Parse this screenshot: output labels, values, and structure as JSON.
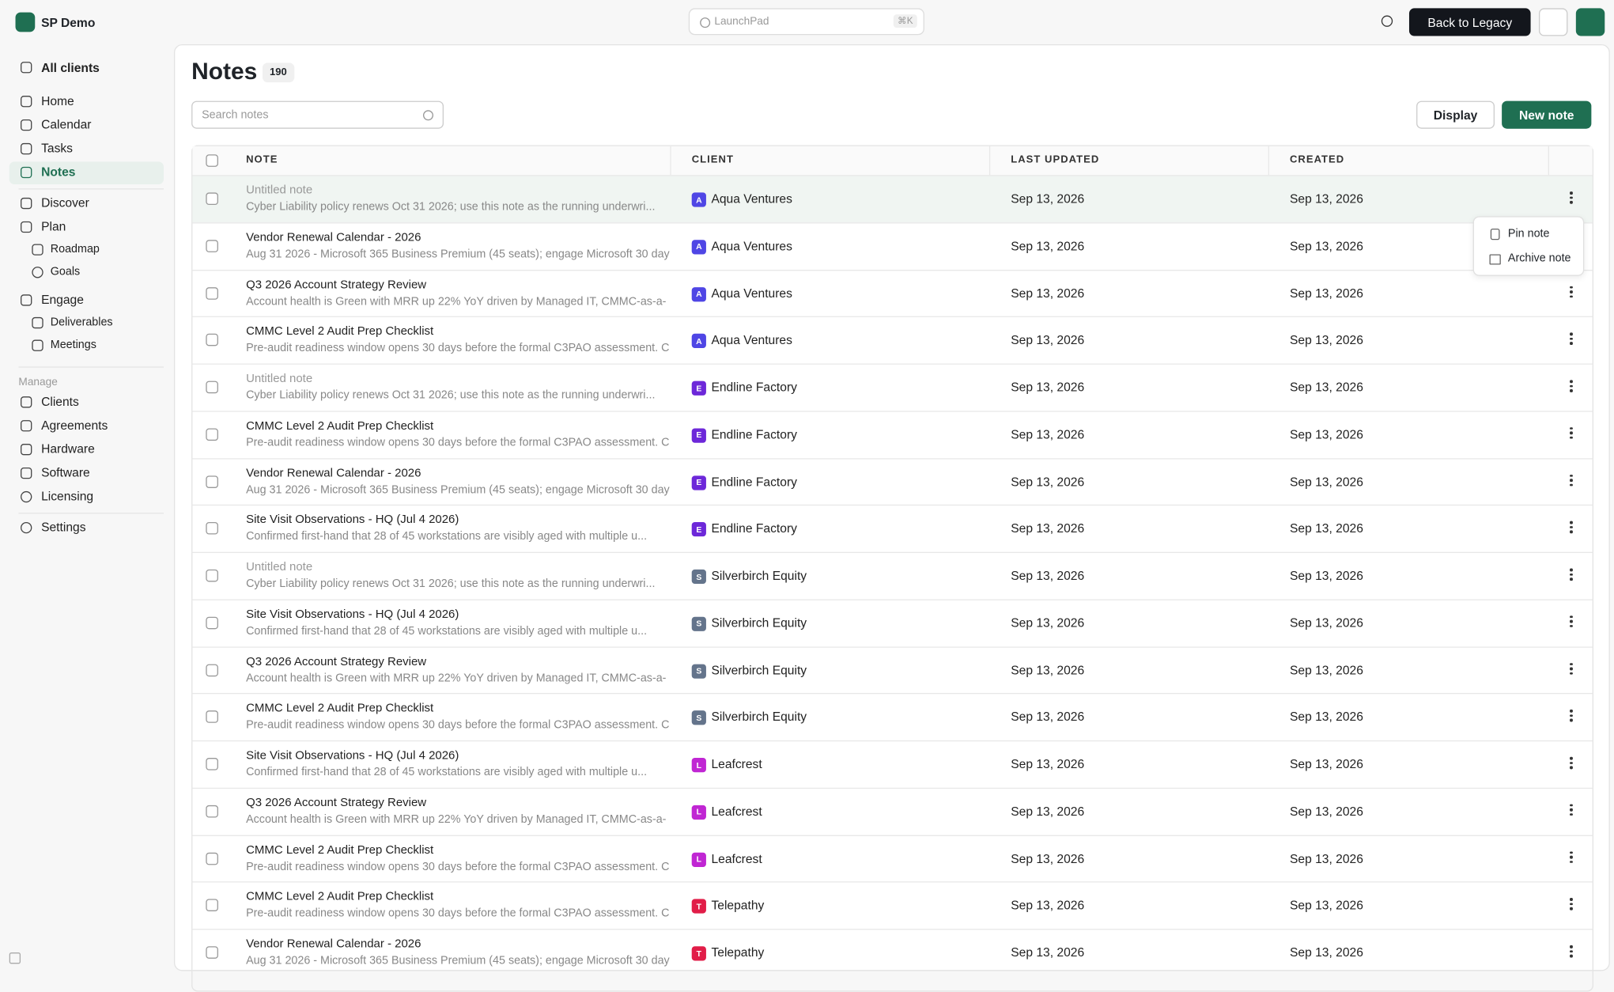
{
  "header": {
    "brand": "SP Demo",
    "search_placeholder": "LaunchPad",
    "shortcut": "⌘K",
    "legacy_button": "Back to Legacy"
  },
  "sidebar": {
    "client_selector": "All clients",
    "nav": [
      "Home",
      "Calendar",
      "Tasks",
      "Notes"
    ],
    "discover": "Discover",
    "plan": "Plan",
    "plan_items": [
      "Roadmap",
      "Goals"
    ],
    "engage": "Engage",
    "engage_items": [
      "Deliverables",
      "Meetings"
    ],
    "manage_heading": "Manage",
    "manage_items": [
      "Clients",
      "Agreements",
      "Hardware",
      "Software",
      "Licensing"
    ],
    "settings": "Settings"
  },
  "main": {
    "title": "Notes",
    "count": "190",
    "search_placeholder": "Search notes",
    "display_button": "Display",
    "new_button": "New note",
    "columns": [
      "NOTE",
      "CLIENT",
      "LAST UPDATED",
      "CREATED"
    ],
    "rows": [
      {
        "title": "Untitled note",
        "preview": "Cyber Liability policy renews Oct 31 2026; use this note as the running underwri...",
        "client": "Aqua Ventures",
        "initial": "A",
        "badge_color": "#4f46e5",
        "updated": "Sep 13, 2026",
        "created": "Sep 13, 2026"
      },
      {
        "title": "Vendor Renewal Calendar - 2026",
        "preview": "Aug 31 2026 - Microsoft 365 Business Premium (45 seats); engage Microsoft 30 day",
        "client": "Aqua Ventures",
        "initial": "A",
        "badge_color": "#4f46e5",
        "updated": "Sep 13, 2026",
        "created": "Sep 13, 2026"
      },
      {
        "title": "Q3 2026 Account Strategy Review",
        "preview": "Account health is Green with MRR up 22% YoY driven by Managed IT, CMMC-as-a-",
        "client": "Aqua Ventures",
        "initial": "A",
        "badge_color": "#4f46e5",
        "updated": "Sep 13, 2026",
        "created": "Sep 13, 2026"
      },
      {
        "title": "CMMC Level 2 Audit Prep Checklist",
        "preview": "Pre-audit readiness window opens 30 days before the formal C3PAO assessment. C",
        "client": "Aqua Ventures",
        "initial": "A",
        "badge_color": "#4f46e5",
        "updated": "Sep 13, 2026",
        "created": "Sep 13, 2026"
      },
      {
        "title": "Untitled note",
        "preview": "Cyber Liability policy renews Oct 31 2026; use this note as the running underwri...",
        "client": "Endline Factory",
        "initial": "E",
        "badge_color": "#6d28d9",
        "updated": "Sep 13, 2026",
        "created": "Sep 13, 2026"
      },
      {
        "title": "CMMC Level 2 Audit Prep Checklist",
        "preview": "Pre-audit readiness window opens 30 days before the formal C3PAO assessment. C",
        "client": "Endline Factory",
        "initial": "E",
        "badge_color": "#6d28d9",
        "updated": "Sep 13, 2026",
        "created": "Sep 13, 2026"
      },
      {
        "title": "Vendor Renewal Calendar - 2026",
        "preview": "Aug 31 2026 - Microsoft 365 Business Premium (45 seats); engage Microsoft 30 day",
        "client": "Endline Factory",
        "initial": "E",
        "badge_color": "#6d28d9",
        "updated": "Sep 13, 2026",
        "created": "Sep 13, 2026"
      },
      {
        "title": "Site Visit Observations - HQ (Jul 4 2026)",
        "preview": "Confirmed first-hand that 28 of 45 workstations are visibly aged with multiple u...",
        "client": "Endline Factory",
        "initial": "E",
        "badge_color": "#6d28d9",
        "updated": "Sep 13, 2026",
        "created": "Sep 13, 2026"
      },
      {
        "title": "Untitled note",
        "preview": "Cyber Liability policy renews Oct 31 2026; use this note as the running underwri...",
        "client": "Silverbirch Equity",
        "initial": "S",
        "badge_color": "#64748b",
        "updated": "Sep 13, 2026",
        "created": "Sep 13, 2026"
      },
      {
        "title": "Site Visit Observations - HQ (Jul 4 2026)",
        "preview": "Confirmed first-hand that 28 of 45 workstations are visibly aged with multiple u...",
        "client": "Silverbirch Equity",
        "initial": "S",
        "badge_color": "#64748b",
        "updated": "Sep 13, 2026",
        "created": "Sep 13, 2026"
      },
      {
        "title": "Q3 2026 Account Strategy Review",
        "preview": "Account health is Green with MRR up 22% YoY driven by Managed IT, CMMC-as-a-",
        "client": "Silverbirch Equity",
        "initial": "S",
        "badge_color": "#64748b",
        "updated": "Sep 13, 2026",
        "created": "Sep 13, 2026"
      },
      {
        "title": "CMMC Level 2 Audit Prep Checklist",
        "preview": "Pre-audit readiness window opens 30 days before the formal C3PAO assessment. C",
        "client": "Silverbirch Equity",
        "initial": "S",
        "badge_color": "#64748b",
        "updated": "Sep 13, 2026",
        "created": "Sep 13, 2026"
      },
      {
        "title": "Site Visit Observations - HQ (Jul 4 2026)",
        "preview": "Confirmed first-hand that 28 of 45 workstations are visibly aged with multiple u...",
        "client": "Leafcrest",
        "initial": "L",
        "badge_color": "#c026d3",
        "updated": "Sep 13, 2026",
        "created": "Sep 13, 2026"
      },
      {
        "title": "Q3 2026 Account Strategy Review",
        "preview": "Account health is Green with MRR up 22% YoY driven by Managed IT, CMMC-as-a-",
        "client": "Leafcrest",
        "initial": "L",
        "badge_color": "#c026d3",
        "updated": "Sep 13, 2026",
        "created": "Sep 13, 2026"
      },
      {
        "title": "CMMC Level 2 Audit Prep Checklist",
        "preview": "Pre-audit readiness window opens 30 days before the formal C3PAO assessment. C",
        "client": "Leafcrest",
        "initial": "L",
        "badge_color": "#c026d3",
        "updated": "Sep 13, 2026",
        "created": "Sep 13, 2026"
      },
      {
        "title": "CMMC Level 2 Audit Prep Checklist",
        "preview": "Pre-audit readiness window opens 30 days before the formal C3PAO assessment. C",
        "client": "Telepathy",
        "initial": "T",
        "badge_color": "#e11d48",
        "updated": "Sep 13, 2026",
        "created": "Sep 13, 2026"
      },
      {
        "title": "Vendor Renewal Calendar - 2026",
        "preview": "Aug 31 2026 - Microsoft 365 Business Premium (45 seats); engage Microsoft 30 day",
        "client": "Telepathy",
        "initial": "T",
        "badge_color": "#e11d48",
        "updated": "Sep 13, 2026",
        "created": "Sep 13, 2026"
      }
    ],
    "row_menu": [
      "Pin note",
      "Archive note"
    ]
  }
}
